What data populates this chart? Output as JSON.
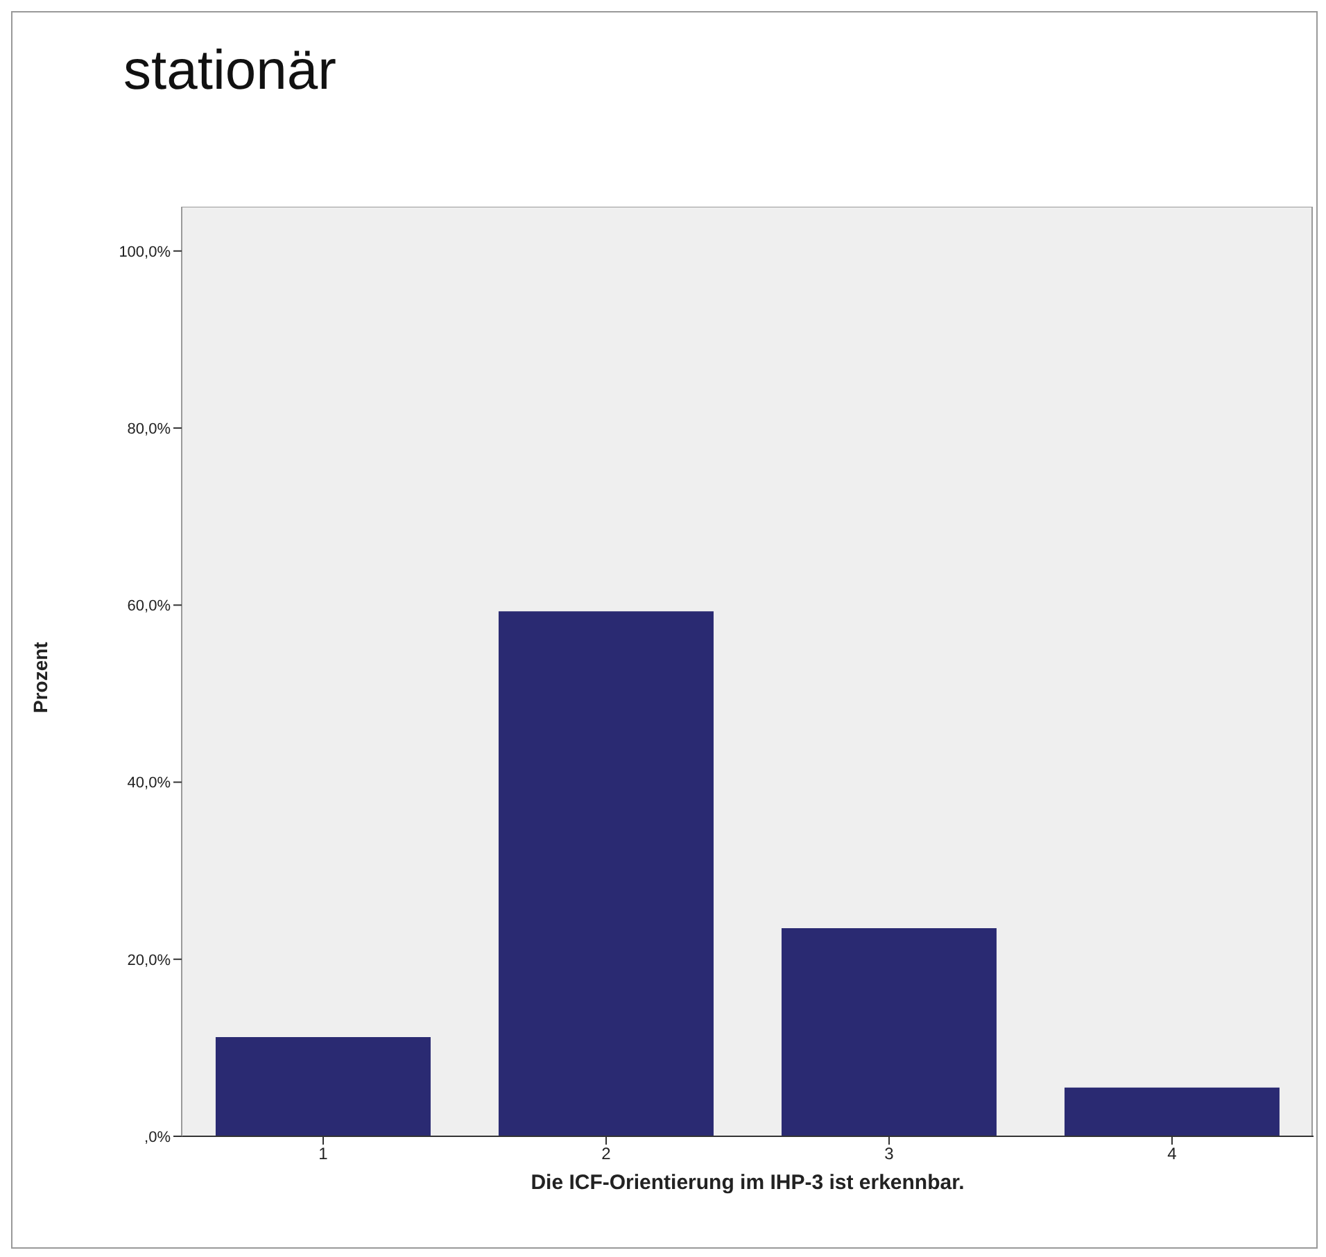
{
  "chart_data": {
    "type": "bar",
    "title": "stationär",
    "xlabel": "Die ICF-Orientierung im IHP-3 ist erkennbar.",
    "ylabel": "Prozent",
    "categories": [
      "1",
      "2",
      "3",
      "4"
    ],
    "values": [
      11.2,
      59.3,
      23.5,
      5.5
    ],
    "color": "#2a2a72",
    "ylim": [
      0,
      105
    ],
    "yticks": [
      {
        "value": 0,
        "label": ",0%"
      },
      {
        "value": 20,
        "label": "20,0%"
      },
      {
        "value": 40,
        "label": "40,0%"
      },
      {
        "value": 60,
        "label": "60,0%"
      },
      {
        "value": 80,
        "label": "80,0%"
      },
      {
        "value": 100,
        "label": "100,0%"
      }
    ]
  }
}
